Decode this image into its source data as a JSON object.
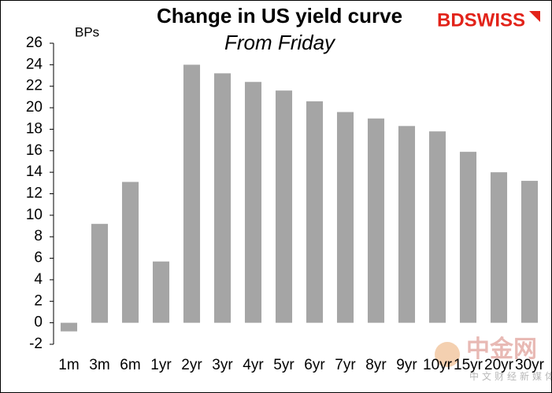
{
  "chart_data": {
    "type": "bar",
    "title": "Change in US yield curve",
    "subtitle": "From Friday",
    "y_label": "BPs",
    "categories": [
      "1m",
      "3m",
      "6m",
      "1yr",
      "2yr",
      "3yr",
      "4yr",
      "5yr",
      "6yr",
      "7yr",
      "8yr",
      "9yr",
      "10yr",
      "15yr",
      "20yr",
      "30yr"
    ],
    "values": [
      -0.8,
      9.2,
      13.1,
      5.7,
      24.0,
      23.2,
      22.4,
      21.6,
      20.6,
      19.6,
      19.0,
      18.3,
      17.8,
      15.9,
      14.0,
      13.2
    ],
    "color": "#a5a5a5",
    "ylim": [
      -2,
      26
    ],
    "yticks": [
      -2,
      0,
      2,
      4,
      6,
      8,
      10,
      12,
      14,
      16,
      18,
      20,
      22,
      24,
      26
    ],
    "grid": false
  },
  "branding": {
    "logo": "BDSWISS"
  },
  "watermark": {
    "text": "中金网",
    "subtext": "中文财经新媒体"
  }
}
